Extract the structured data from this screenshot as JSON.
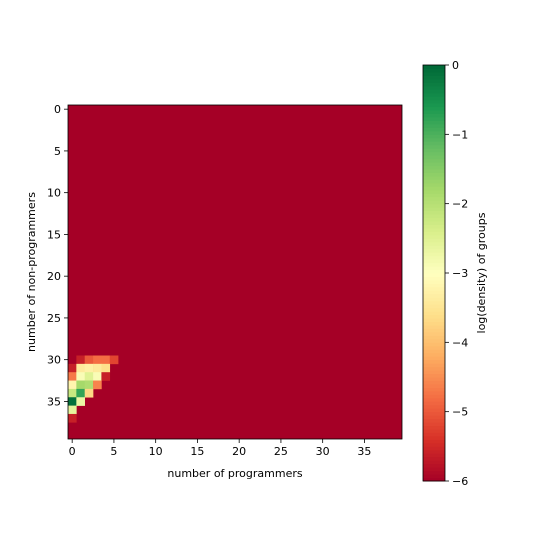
{
  "chart_data": {
    "type": "heatmap",
    "title": "",
    "xlabel": "number of programmers",
    "ylabel": "number of non-programmers",
    "x_ticks": [
      0,
      5,
      10,
      15,
      20,
      25,
      30,
      35
    ],
    "y_ticks": [
      0,
      5,
      10,
      15,
      20,
      25,
      30,
      35
    ],
    "n_cols": 40,
    "n_rows": 40,
    "xlim": [
      -0.5,
      39.5
    ],
    "ylim": [
      39.5,
      -0.5
    ],
    "y_axis_inverted": true,
    "colormap": "RdYlGn",
    "vmin": -6,
    "vmax": 0,
    "background_value": -6,
    "colorbar": {
      "label": "log(density) of groups",
      "ticks": [
        0,
        -1,
        -2,
        -3,
        -4,
        -5,
        -6
      ]
    },
    "cells": [
      {
        "row": 30,
        "col": 0,
        "value": -6
      },
      {
        "row": 30,
        "col": 1,
        "value": -5.6
      },
      {
        "row": 30,
        "col": 2,
        "value": -5.0
      },
      {
        "row": 30,
        "col": 3,
        "value": -4.8
      },
      {
        "row": 30,
        "col": 4,
        "value": -4.8
      },
      {
        "row": 30,
        "col": 5,
        "value": -5.2
      },
      {
        "row": 31,
        "col": 0,
        "value": -5.6
      },
      {
        "row": 31,
        "col": 1,
        "value": -3.4
      },
      {
        "row": 31,
        "col": 2,
        "value": -3.3
      },
      {
        "row": 31,
        "col": 3,
        "value": -3.4
      },
      {
        "row": 31,
        "col": 4,
        "value": -3.6
      },
      {
        "row": 32,
        "col": 0,
        "value": -4.7
      },
      {
        "row": 32,
        "col": 1,
        "value": -2.9
      },
      {
        "row": 32,
        "col": 2,
        "value": -2.5
      },
      {
        "row": 32,
        "col": 3,
        "value": -2.9
      },
      {
        "row": 32,
        "col": 4,
        "value": -5.6
      },
      {
        "row": 33,
        "col": 0,
        "value": -3.2
      },
      {
        "row": 33,
        "col": 1,
        "value": -1.8
      },
      {
        "row": 33,
        "col": 2,
        "value": -1.9
      },
      {
        "row": 33,
        "col": 3,
        "value": -4.6
      },
      {
        "row": 34,
        "col": 0,
        "value": -2.2
      },
      {
        "row": 34,
        "col": 1,
        "value": -0.8
      },
      {
        "row": 34,
        "col": 2,
        "value": -3.7
      },
      {
        "row": 35,
        "col": 0,
        "value": -0.1
      },
      {
        "row": 35,
        "col": 1,
        "value": -2.7
      },
      {
        "row": 36,
        "col": 0,
        "value": -2.6
      },
      {
        "row": 37,
        "col": 0,
        "value": -5.6
      }
    ]
  }
}
